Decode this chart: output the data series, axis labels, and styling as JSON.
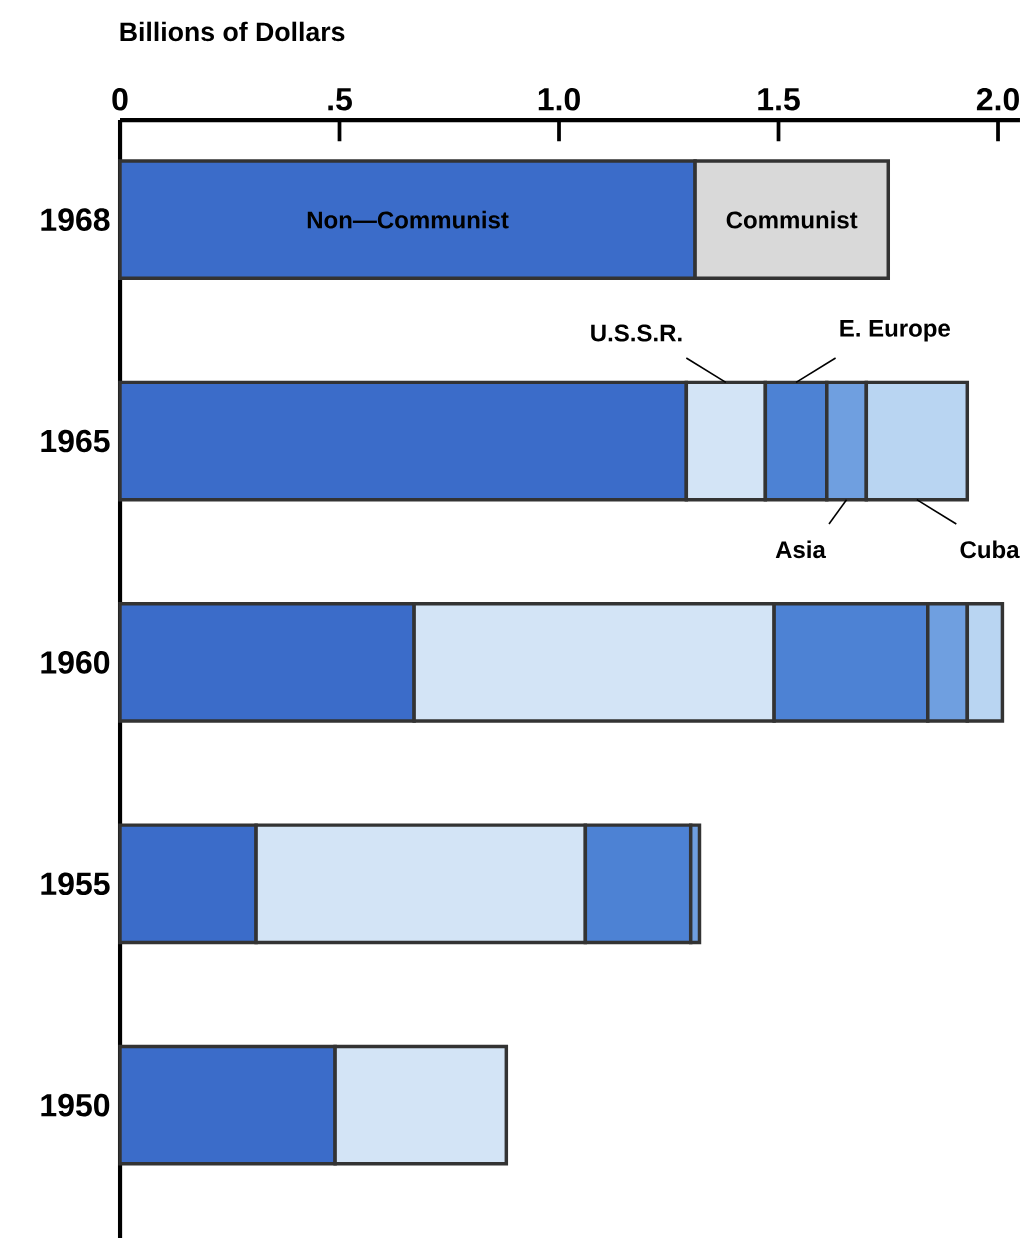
{
  "chart_data": {
    "type": "bar",
    "orientation": "horizontal",
    "stacked": true,
    "xlabel": "Billions of Dollars",
    "categories": [
      "1968",
      "1965",
      "1960",
      "1955",
      "1950"
    ],
    "series": [
      {
        "name": "Non—Communist",
        "color": "#3b6cc9",
        "values": [
          1.31,
          1.29,
          0.67,
          0.31,
          0.49
        ]
      },
      {
        "name": "U.S.S.R.",
        "color": "#d3e4f6",
        "values": [
          null,
          0.18,
          0.82,
          0.75,
          0.39
        ]
      },
      {
        "name": "E. Europe",
        "color": "#4d82d4",
        "values": [
          null,
          0.14,
          0.35,
          0.24,
          null
        ]
      },
      {
        "name": "Asia",
        "color": "#6f9fe0",
        "values": [
          null,
          0.09,
          0.09,
          0.02,
          null
        ]
      },
      {
        "name": "Cuba",
        "color": "#b9d5f2",
        "values": [
          null,
          0.23,
          0.08,
          null,
          null
        ]
      },
      {
        "name": "Communist",
        "color": "#d9d9d9",
        "values": [
          0.44,
          null,
          null,
          null,
          null
        ]
      }
    ],
    "xlim": [
      0,
      2.05
    ],
    "xticks": [
      0,
      {
        "value": 0.5,
        "label": ".5"
      },
      {
        "value": 1.0,
        "label": "1.0"
      },
      1.5,
      {
        "value": 2.0,
        "label": "2.0"
      }
    ],
    "grid": false,
    "legend": false
  }
}
